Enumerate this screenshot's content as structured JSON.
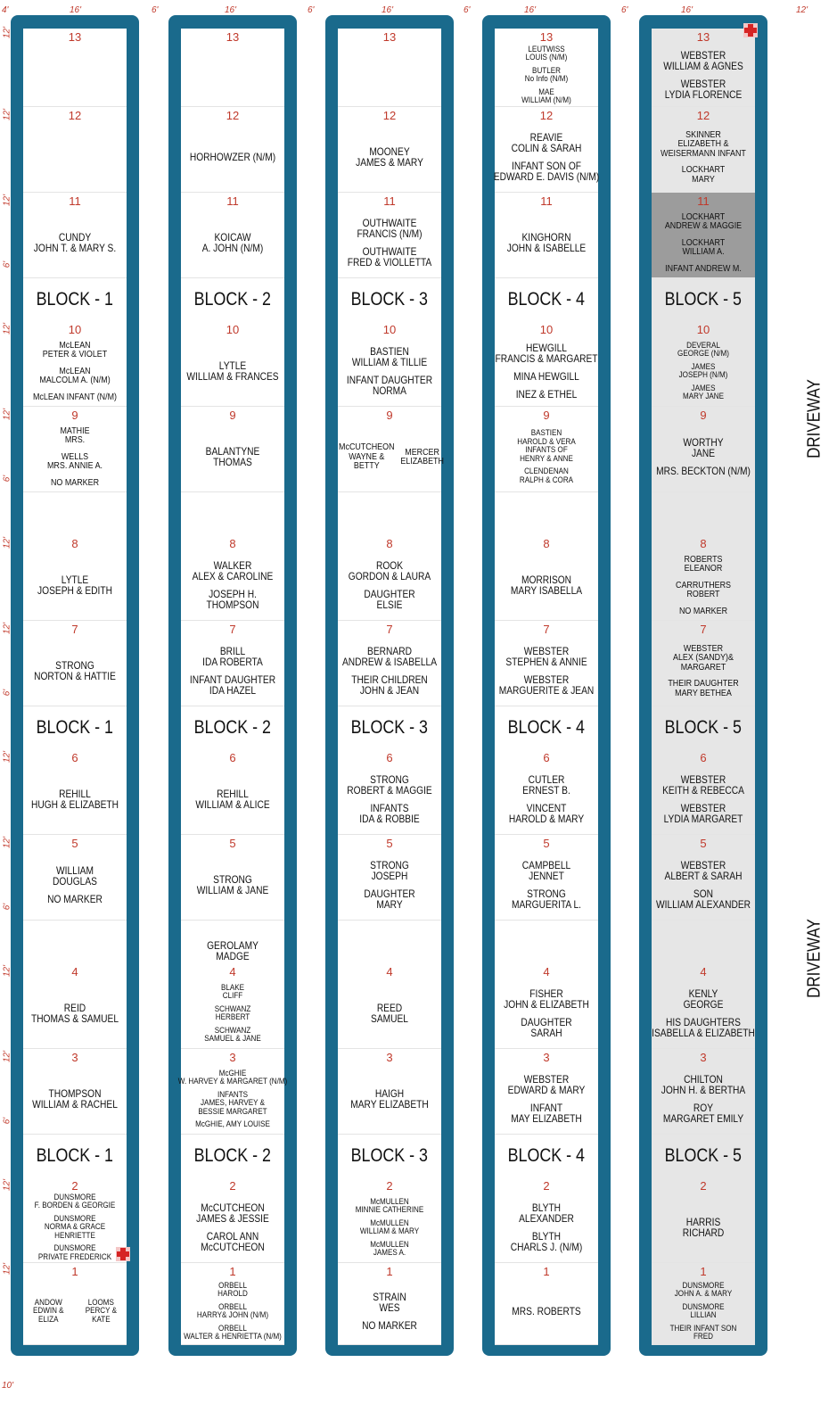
{
  "dimensions": {
    "top": [
      "4'",
      "16'",
      "6'",
      "16'",
      "6'",
      "16'",
      "6'",
      "16'",
      "6'",
      "16'",
      "12'"
    ],
    "left": [
      "12'",
      "12'",
      "12'",
      "6'",
      "12'",
      "12'",
      "6'",
      "12'",
      "12'",
      "6'",
      "12'",
      "12'",
      "6'",
      "12'",
      "12'",
      "6'",
      "12'",
      "12'"
    ],
    "bottom": "10'"
  },
  "driveway": [
    "DRIVEWAY",
    "DRIVEWAY"
  ],
  "columns": [
    {
      "blocks": [
        "BLOCK - 1",
        "BLOCK - 1",
        "BLOCK - 1"
      ],
      "plots": [
        {
          "number": "13",
          "entries": []
        },
        {
          "number": "12",
          "entries": []
        },
        {
          "number": "11",
          "entries": [
            [
              "CUNDY",
              "JOHN T. & MARY S."
            ]
          ]
        },
        {
          "number": "10",
          "entries": [
            [
              "McLEAN",
              "PETER & VIOLET"
            ],
            [
              "McLEAN",
              "MALCOLM A. (N/M)"
            ],
            [
              "McLEAN INFANT (N/M)"
            ]
          ]
        },
        {
          "number": "9",
          "entries": [
            [
              "MATHIE",
              "MRS."
            ],
            [
              "WELLS",
              "MRS. ANNIE A."
            ],
            [
              "NO MARKER"
            ]
          ]
        },
        {
          "number": "8",
          "entries": [
            [
              "LYTLE",
              "JOSEPH & EDITH"
            ]
          ]
        },
        {
          "number": "7",
          "entries": [
            [
              "STRONG",
              "NORTON & HATTIE"
            ]
          ]
        },
        {
          "number": "6",
          "entries": [
            [
              "REHILL",
              "HUGH & ELIZABETH"
            ]
          ]
        },
        {
          "number": "5",
          "entries": [
            [
              "WILLIAM",
              "DOUGLAS"
            ],
            [
              "NO MARKER"
            ]
          ]
        },
        {
          "number": "4",
          "entries": [
            [
              "REID",
              "THOMAS & SAMUEL"
            ]
          ]
        },
        {
          "number": "3",
          "entries": [
            [
              "THOMPSON",
              "WILLIAM & RACHEL"
            ]
          ]
        },
        {
          "number": "2",
          "entries": [
            [
              "DUNSMORE",
              "F. BORDEN & GEORGIE"
            ],
            [
              "DUNSMORE",
              "NORMA & GRACE",
              "HENRIETTE"
            ],
            [
              "DUNSMORE",
              "PRIVATE FREDERICK"
            ]
          ]
        },
        {
          "number": "1",
          "sides": [
            [
              "ANDOW",
              "EDWIN &",
              "ELIZA"
            ],
            [
              "LOOMS",
              "PERCY &",
              "KATE"
            ]
          ]
        }
      ]
    },
    {
      "blocks": [
        "BLOCK - 2",
        "BLOCK - 2",
        "BLOCK - 2"
      ],
      "plots": [
        {
          "number": "13",
          "entries": []
        },
        {
          "number": "12",
          "entries": [
            [
              "HORHOWZER (N/M)"
            ]
          ]
        },
        {
          "number": "11",
          "entries": [
            [
              "KOICAW",
              "A. JOHN (N/M)"
            ]
          ]
        },
        {
          "number": "10",
          "entries": [
            [
              "LYTLE",
              "WILLIAM & FRANCES"
            ]
          ]
        },
        {
          "number": "9",
          "entries": [
            [
              "BALANTYNE",
              "THOMAS"
            ]
          ]
        },
        {
          "number": "8",
          "entries": [
            [
              "WALKER",
              "ALEX & CAROLINE"
            ],
            [
              "JOSEPH H.",
              "THOMPSON"
            ]
          ]
        },
        {
          "number": "7",
          "entries": [
            [
              "BRILL",
              "IDA ROBERTA"
            ],
            [
              "INFANT DAUGHTER",
              "IDA HAZEL"
            ]
          ]
        },
        {
          "number": "6",
          "entries": [
            [
              "REHILL",
              "WILLIAM & ALICE"
            ]
          ]
        },
        {
          "number": "5",
          "entries": [
            [
              "STRONG",
              "WILLIAM & JANE"
            ]
          ]
        },
        {
          "number": "4",
          "above": [
            "GEROLAMY",
            "MADGE"
          ],
          "entries": [
            [
              "BLAKE",
              "CLIFF"
            ],
            [
              "SCHWANZ",
              "HERBERT"
            ],
            [
              "SCHWANZ",
              "SAMUEL & JANE"
            ]
          ]
        },
        {
          "number": "3",
          "entries": [
            [
              "McGHIE",
              "W. HARVEY & MARGARET (N/M)"
            ],
            [
              "INFANTS",
              "JAMES, HARVEY &",
              "BESSIE MARGARET"
            ],
            [
              "McGHIE, AMY LOUISE"
            ]
          ]
        },
        {
          "number": "2",
          "entries": [
            [
              "McCUTCHEON",
              "JAMES & JESSIE"
            ],
            [
              "CAROL ANN",
              "McCUTCHEON"
            ]
          ]
        },
        {
          "number": "1",
          "entries": [
            [
              "ORBELL",
              "HAROLD"
            ],
            [
              "ORBELL",
              "HARRY& JOHN (N/M)"
            ],
            [
              "ORBELL",
              "WALTER & HENRIETTA (N/M)"
            ]
          ]
        }
      ]
    },
    {
      "blocks": [
        "BLOCK - 3",
        "BLOCK - 3",
        "BLOCK - 3"
      ],
      "plots": [
        {
          "number": "13",
          "entries": []
        },
        {
          "number": "12",
          "entries": [
            [
              "MOONEY",
              "JAMES & MARY"
            ]
          ]
        },
        {
          "number": "11",
          "entries": [
            [
              "OUTHWAITE",
              "FRANCIS (N/M)"
            ],
            [
              "OUTHWAITE",
              "FRED & VIOLLETTA"
            ]
          ]
        },
        {
          "number": "10",
          "entries": [
            [
              "BASTIEN",
              "WILLIAM & TILLIE"
            ],
            [
              "INFANT DAUGHTER",
              "NORMA"
            ]
          ]
        },
        {
          "number": "9",
          "sides": [
            [
              "McCUTCHEON",
              "WAYNE &",
              "BETTY"
            ],
            [
              "MERCER",
              "ELIZABETH"
            ]
          ]
        },
        {
          "number": "8",
          "entries": [
            [
              "ROOK",
              "GORDON & LAURA"
            ],
            [
              "DAUGHTER",
              "ELSIE"
            ]
          ]
        },
        {
          "number": "7",
          "entries": [
            [
              "BERNARD",
              "ANDREW & ISABELLA"
            ],
            [
              "THEIR CHILDREN",
              "JOHN & JEAN"
            ]
          ]
        },
        {
          "number": "6",
          "entries": [
            [
              "STRONG",
              "ROBERT & MAGGIE"
            ],
            [
              "INFANTS",
              "IDA & ROBBIE"
            ]
          ]
        },
        {
          "number": "5",
          "entries": [
            [
              "STRONG",
              "JOSEPH"
            ],
            [
              "DAUGHTER",
              "MARY"
            ]
          ]
        },
        {
          "number": "4",
          "entries": [
            [
              "REED",
              "SAMUEL"
            ]
          ]
        },
        {
          "number": "3",
          "entries": [
            [
              "HAIGH",
              "MARY ELIZABETH"
            ]
          ]
        },
        {
          "number": "2",
          "entries": [
            [
              "McMULLEN",
              "MINNIE CATHERINE"
            ],
            [
              "McMULLEN",
              "WILLIAM & MARY"
            ],
            [
              "McMULLEN",
              "JAMES A."
            ]
          ]
        },
        {
          "number": "1",
          "entries": [
            [
              "STRAIN",
              "WES"
            ],
            [
              "NO MARKER"
            ]
          ]
        }
      ]
    },
    {
      "blocks": [
        "BLOCK - 4",
        "BLOCK - 4",
        "BLOCK - 4"
      ],
      "plots": [
        {
          "number": "13",
          "entries": [
            [
              "LEUTWISS",
              "LOUIS (N/M)"
            ],
            [
              "BUTLER",
              "No Info (N/M)"
            ],
            [
              "MAE",
              "WILLIAM (N/M)"
            ]
          ]
        },
        {
          "number": "12",
          "entries": [
            [
              "REAVIE",
              "COLIN & SARAH"
            ],
            [
              "INFANT SON OF",
              "EDWARD E. DAVIS (N/M)"
            ]
          ]
        },
        {
          "number": "11",
          "entries": [
            [
              "KINGHORN",
              "JOHN & ISABELLE"
            ]
          ]
        },
        {
          "number": "10",
          "entries": [
            [
              "HEWGILL",
              "FRANCIS & MARGARET"
            ],
            [
              "MINA HEWGILL"
            ],
            [
              "INEZ & ETHEL"
            ]
          ]
        },
        {
          "number": "9",
          "entries": [
            [
              "BASTIEN",
              "HAROLD & VERA",
              "INFANTS OF",
              "HENRY & ANNE"
            ],
            [
              "CLENDENAN",
              "RALPH & CORA"
            ]
          ]
        },
        {
          "number": "8",
          "entries": [
            [
              "MORRISON",
              "MARY ISABELLA"
            ]
          ]
        },
        {
          "number": "7",
          "entries": [
            [
              "WEBSTER",
              "STEPHEN & ANNIE"
            ],
            [
              "WEBSTER",
              "MARGUERITE & JEAN"
            ]
          ]
        },
        {
          "number": "6",
          "entries": [
            [
              "CUTLER",
              "ERNEST B."
            ],
            [
              "VINCENT",
              "HAROLD & MARY"
            ]
          ]
        },
        {
          "number": "5",
          "entries": [
            [
              "CAMPBELL",
              "JENNET"
            ],
            [
              "STRONG",
              "MARGUERITA L."
            ]
          ]
        },
        {
          "number": "4",
          "entries": [
            [
              "FISHER",
              "JOHN & ELIZABETH"
            ],
            [
              "DAUGHTER",
              "SARAH"
            ]
          ]
        },
        {
          "number": "3",
          "entries": [
            [
              "WEBSTER",
              "EDWARD & MARY"
            ],
            [
              "INFANT",
              "MAY ELIZABETH"
            ]
          ]
        },
        {
          "number": "2",
          "entries": [
            [
              "BLYTH",
              "ALEXANDER"
            ],
            [
              "BLYTH",
              "CHARLS J. (N/M)"
            ]
          ]
        },
        {
          "number": "1",
          "entries": [
            [
              "MRS. ROBERTS"
            ]
          ]
        }
      ]
    },
    {
      "blocks": [
        "BLOCK - 5",
        "BLOCK - 5",
        "BLOCK - 5"
      ],
      "plots": [
        {
          "number": "13",
          "entries": [
            [
              "WEBSTER",
              "WILLIAM & AGNES"
            ],
            [
              "WEBSTER",
              "LYDIA FLORENCE"
            ]
          ]
        },
        {
          "number": "12",
          "entries": [
            [
              "SKINNER",
              "ELIZABETH &",
              "WEISERMANN INFANT"
            ],
            [
              "LOCKHART",
              "MARY"
            ]
          ]
        },
        {
          "number": "11",
          "entries": [
            [
              "LOCKHART",
              "ANDREW & MAGGIE"
            ],
            [
              "LOCKHART",
              "WILLIAM A."
            ],
            [
              "INFANT ANDREW M."
            ]
          ]
        },
        {
          "number": "10",
          "entries": [
            [
              "DEVERAL",
              "GEORGE (N/M)"
            ],
            [
              "JAMES",
              "JOSEPH (N/M)"
            ],
            [
              "JAMES",
              "MARY JANE"
            ]
          ]
        },
        {
          "number": "9",
          "entries": [
            [
              "WORTHY",
              "JANE"
            ],
            [
              "MRS. BECKTON (N/M)"
            ]
          ]
        },
        {
          "number": "8",
          "entries": [
            [
              "ROBERTS",
              "ELEANOR"
            ],
            [
              "CARRUTHERS",
              "ROBERT"
            ],
            [
              "NO MARKER"
            ]
          ]
        },
        {
          "number": "7",
          "entries": [
            [
              "WEBSTER",
              "ALEX (SANDY)&",
              "MARGARET"
            ],
            [
              "THEIR DAUGHTER",
              "MARY BETHEA"
            ]
          ]
        },
        {
          "number": "6",
          "entries": [
            [
              "WEBSTER",
              "KEITH & REBECCA"
            ],
            [
              "WEBSTER",
              "LYDIA MARGARET"
            ]
          ]
        },
        {
          "number": "5",
          "entries": [
            [
              "WEBSTER",
              "ALBERT & SARAH"
            ],
            [
              "SON",
              "WILLIAM ALEXANDER"
            ]
          ]
        },
        {
          "number": "4",
          "entries": [
            [
              "KENLY",
              "GEORGE"
            ],
            [
              "HIS DAUGHTERS",
              "ISABELLA & ELIZABETH"
            ]
          ]
        },
        {
          "number": "3",
          "entries": [
            [
              "CHILTON",
              "JOHN H. & BERTHA"
            ],
            [
              "ROY",
              "MARGARET EMILY"
            ]
          ]
        },
        {
          "number": "2",
          "entries": [
            [
              "HARRIS",
              "RICHARD"
            ]
          ]
        },
        {
          "number": "1",
          "entries": [
            [
              "DUNSMORE",
              "JOHN A. & MARY"
            ],
            [
              "DUNSMORE",
              "LILLIAN"
            ],
            [
              "THEIR INFANT SON",
              "FRED"
            ]
          ]
        }
      ]
    }
  ]
}
